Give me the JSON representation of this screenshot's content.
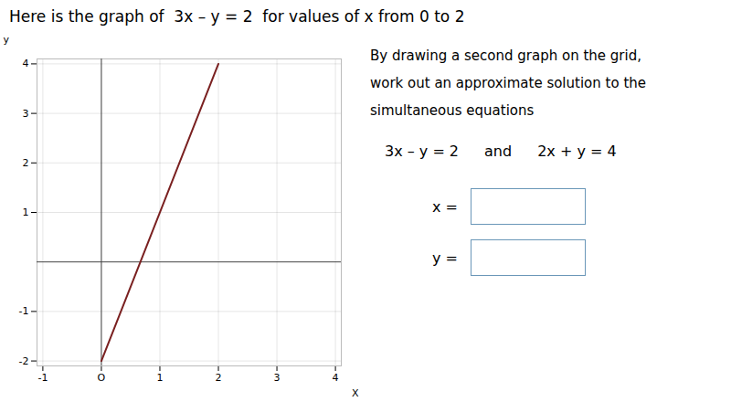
{
  "chart_data": {
    "type": "line",
    "title": "Here is the graph of  3x – y = 2  for values of x from 0 to 2",
    "x_label": "X",
    "y_label": "y",
    "x": [
      0.0,
      2.0
    ],
    "values": [
      -2.0,
      4.0
    ],
    "color": "#7a2020",
    "xlim": [
      -1.1,
      4.1
    ],
    "ylim": [
      -2.1,
      4.1
    ],
    "xticks": [
      -1,
      {
        "value": 0,
        "label": "O"
      },
      1,
      2,
      3,
      4
    ],
    "yticks": [
      -2,
      -1,
      1,
      2,
      3,
      4
    ],
    "grid": true,
    "annotations": [
      "By drawing a second graph on the grid,",
      "work out an approximate solution to the",
      "simultaneous equations",
      "3x – y = 2",
      "and",
      "2x + y = 4",
      "x =",
      "y ="
    ]
  }
}
